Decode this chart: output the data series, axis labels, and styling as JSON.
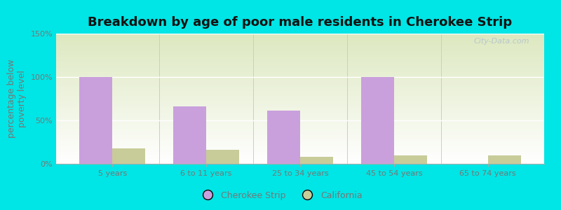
{
  "title": "Breakdown by age of poor male residents in Cherokee Strip",
  "ylabel": "percentage below\npoverty level",
  "categories": [
    "5 years",
    "6 to 11 years",
    "25 to 34 years",
    "45 to 54 years",
    "65 to 74 years"
  ],
  "cherokee_values": [
    100,
    66,
    61,
    100,
    0
  ],
  "california_values": [
    18,
    16,
    8,
    10,
    10
  ],
  "cherokee_color": "#c9a0dc",
  "california_color": "#c8cc99",
  "background_color": "#00e5e5",
  "ylim": [
    0,
    150
  ],
  "yticks": [
    0,
    50,
    100,
    150
  ],
  "ytick_labels": [
    "0%",
    "50%",
    "100%",
    "150%"
  ],
  "bar_width": 0.35,
  "title_fontsize": 13,
  "axis_label_fontsize": 9,
  "tick_fontsize": 8,
  "legend_labels": [
    "Cherokee Strip",
    "California"
  ],
  "watermark": "City-Data.com",
  "text_color": "#777777"
}
